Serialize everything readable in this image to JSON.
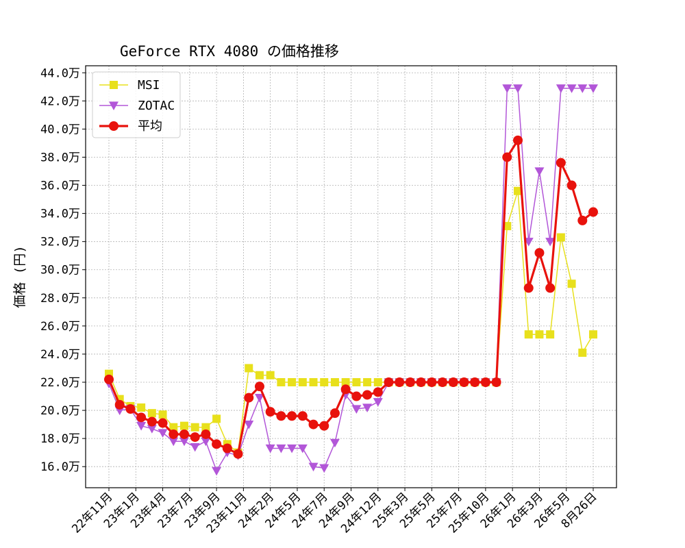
{
  "chart_data": {
    "type": "line",
    "title": "GeForce RTX 4080 の価格推移",
    "xlabel": "",
    "ylabel": "価格 (円)",
    "ylim": [
      14.5,
      44.5
    ],
    "yticks": [
      16,
      18,
      20,
      22,
      24,
      26,
      28,
      30,
      32,
      34,
      36,
      38,
      40,
      42,
      44
    ],
    "ytick_labels": [
      "16.0万",
      "18.0万",
      "20.0万",
      "22.0万",
      "24.0万",
      "26.0万",
      "28.0万",
      "30.0万",
      "32.0万",
      "34.0万",
      "36.0万",
      "38.0万",
      "40.0万",
      "42.0万",
      "44.0万"
    ],
    "xtick_labels": [
      "22年11月",
      "23年1月",
      "23年4月",
      "23年7月",
      "23年9月",
      "23年11月",
      "24年2月",
      "24年5月",
      "24年7月",
      "24年9月",
      "24年12月",
      "25年3月",
      "25年5月",
      "25年7月",
      "25年10月",
      "26年1月",
      "26年3月",
      "26年5月",
      "8月26日"
    ],
    "grid": true,
    "legend_position": "upper-left",
    "series": [
      {
        "name": "MSI",
        "color": "#e8e01c",
        "marker": "square",
        "values": [
          22.6,
          20.8,
          20.3,
          20.2,
          19.8,
          19.7,
          18.8,
          18.9,
          18.8,
          18.8,
          19.4,
          17.6,
          17.0,
          23.0,
          22.5,
          22.5,
          22.0,
          22.0,
          22.0,
          22.0,
          22.0,
          22.0,
          22.0,
          22.0,
          22.0,
          22.0,
          22.0,
          22.0,
          22.0,
          22.0,
          22.0,
          22.0,
          22.0,
          22.0,
          22.0,
          22.0,
          22.0,
          33.1,
          35.6,
          25.4,
          25.4,
          25.4,
          32.3,
          29.0,
          24.1,
          25.4
        ]
      },
      {
        "name": "ZOTAC",
        "color": "#b256d8",
        "marker": "triangle-down",
        "values": [
          21.9,
          20.0,
          20.1,
          18.9,
          18.7,
          18.4,
          17.8,
          17.8,
          17.4,
          17.8,
          15.7,
          17.0,
          16.8,
          19.0,
          20.9,
          17.3,
          17.3,
          17.3,
          17.3,
          16.0,
          15.9,
          17.7,
          21.1,
          20.1,
          20.2,
          20.6,
          22.0,
          22.0,
          22.0,
          22.0,
          22.0,
          22.0,
          22.0,
          22.0,
          22.0,
          22.0,
          22.0,
          42.9,
          42.9,
          32.0,
          37.0,
          32.0,
          42.9,
          42.9,
          42.9,
          42.9
        ]
      },
      {
        "name": "平均",
        "color": "#e8120c",
        "marker": "circle",
        "values": [
          22.2,
          20.4,
          20.1,
          19.5,
          19.2,
          19.1,
          18.3,
          18.3,
          18.1,
          18.3,
          17.6,
          17.3,
          16.9,
          20.9,
          21.7,
          19.9,
          19.6,
          19.6,
          19.6,
          19.0,
          18.9,
          19.8,
          21.5,
          21.0,
          21.1,
          21.3,
          22.0,
          22.0,
          22.0,
          22.0,
          22.0,
          22.0,
          22.0,
          22.0,
          22.0,
          22.0,
          22.0,
          38.0,
          39.2,
          28.7,
          31.2,
          28.7,
          37.6,
          36.0,
          33.5,
          34.1
        ]
      }
    ]
  }
}
